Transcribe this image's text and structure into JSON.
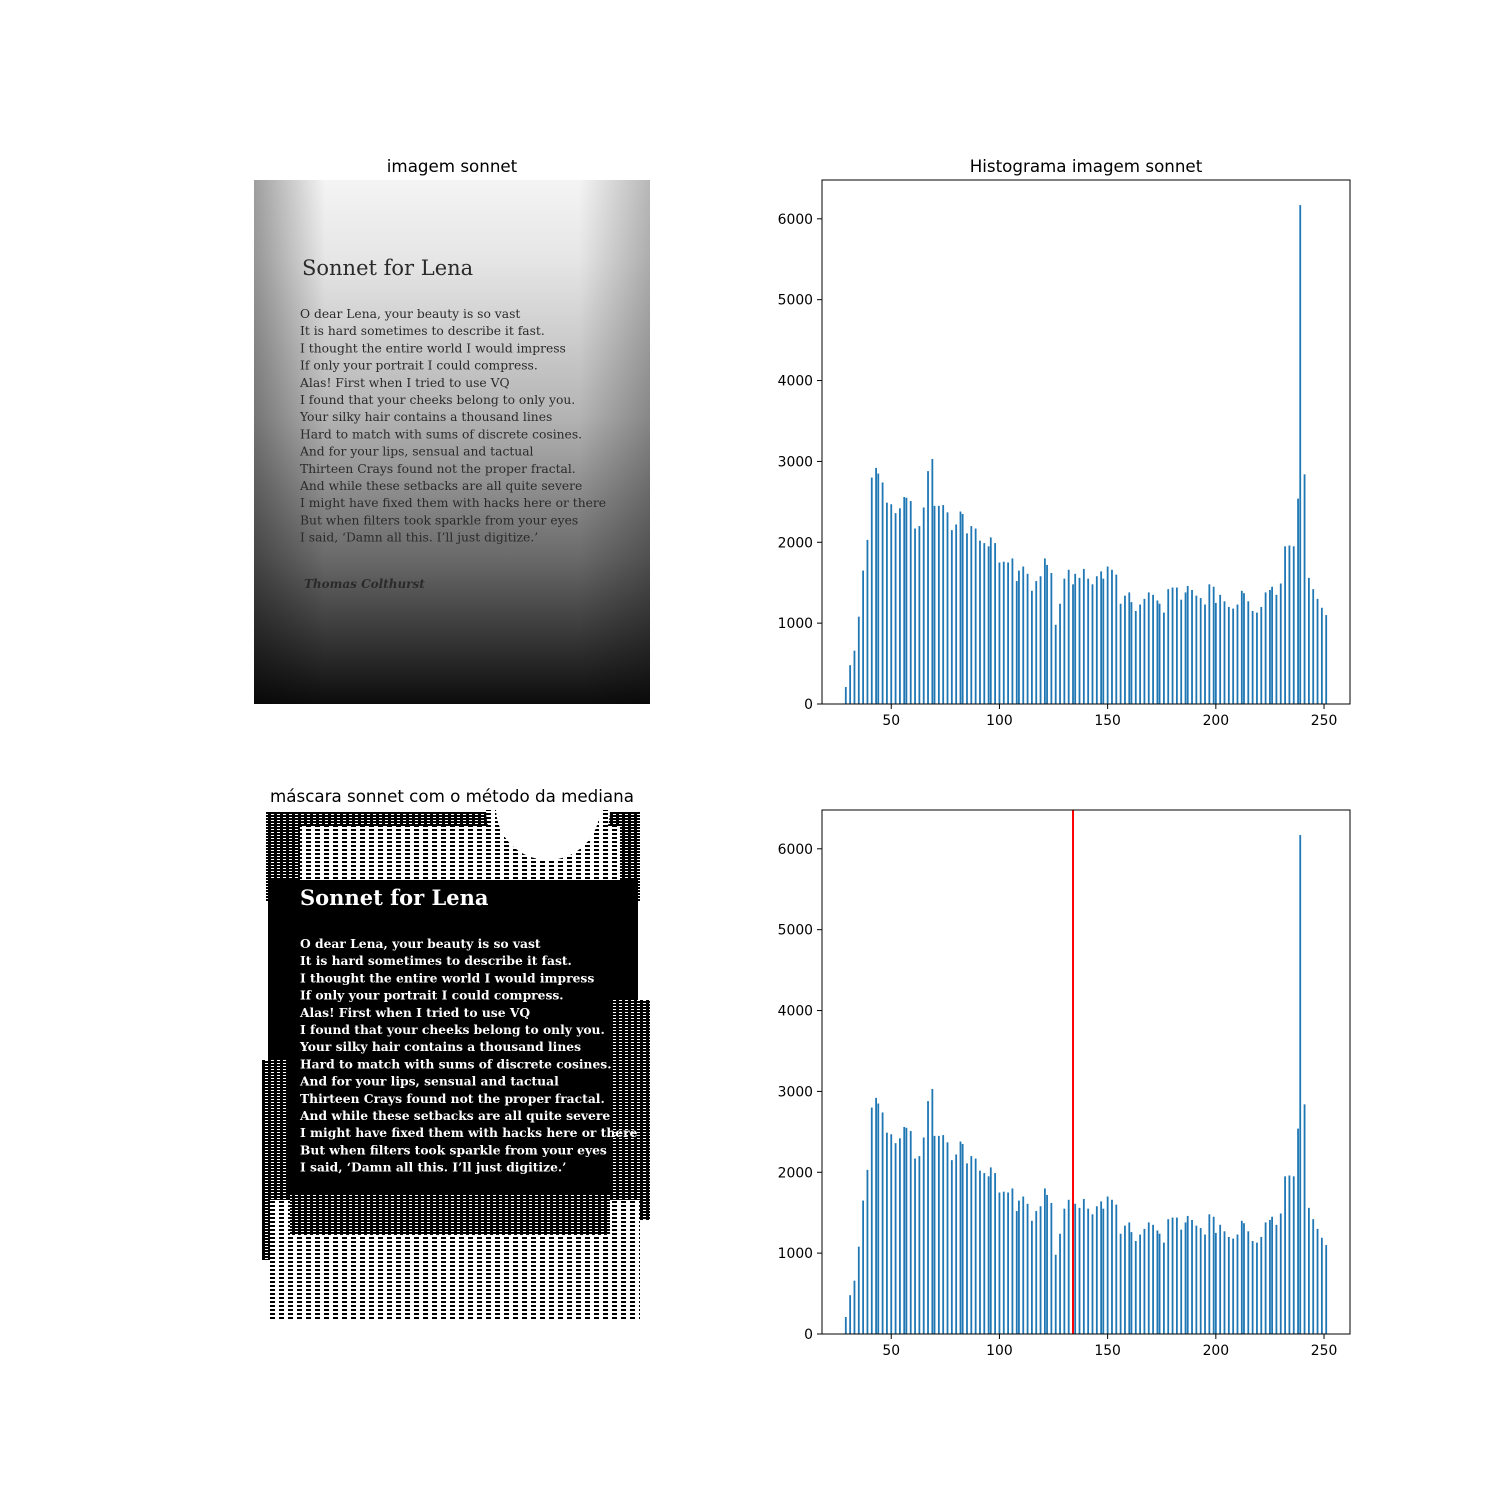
{
  "panels": {
    "image_title": "imagem sonnet",
    "mask_title": "máscara sonnet com o método da mediana",
    "hist_title": "Histograma imagem sonnet",
    "hist2_title": ""
  },
  "document": {
    "heading": "Sonnet for Lena",
    "lines": [
      "O dear Lena, your beauty is so vast",
      "It is hard sometimes to describe it fast.",
      "I thought the entire world I would impress",
      "If only your portrait I could compress.",
      "Alas! First when I tried to use VQ",
      "I found that your cheeks belong to only you.",
      "Your silky hair contains a thousand lines",
      "Hard to match with sums of discrete cosines.",
      "And for your lips, sensual and tactual",
      "Thirteen Crays found not the proper fractal.",
      "And while these setbacks are all quite severe",
      "I might have fixed them with hacks here or there",
      "But when filters took sparkle from your eyes",
      "I said, ‘Damn all this. I’ll just digitize.’"
    ],
    "signature": "Thomas Colthurst"
  },
  "chart_data": [
    {
      "type": "bar",
      "title": "Histograma imagem sonnet",
      "xlabel": "",
      "ylabel": "",
      "xlim": [
        18,
        262
      ],
      "ylim": [
        0,
        6480
      ],
      "xticks": [
        50,
        100,
        150,
        200,
        250
      ],
      "yticks": [
        0,
        1000,
        2000,
        3000,
        4000,
        5000,
        6000
      ],
      "bar_color": "#1f77b4",
      "x": [
        29,
        31,
        33,
        35,
        37,
        39,
        41,
        43,
        44,
        46,
        48,
        50,
        52,
        54,
        56,
        57,
        59,
        61,
        63,
        65,
        67,
        69,
        70,
        72,
        74,
        76,
        78,
        80,
        82,
        83,
        85,
        87,
        89,
        91,
        93,
        95,
        96,
        98,
        100,
        102,
        104,
        106,
        108,
        109,
        111,
        113,
        115,
        117,
        119,
        121,
        122,
        124,
        126,
        128,
        130,
        132,
        134,
        135,
        137,
        139,
        141,
        143,
        145,
        147,
        148,
        150,
        152,
        154,
        156,
        158,
        160,
        161,
        163,
        165,
        167,
        169,
        171,
        173,
        174,
        176,
        178,
        180,
        182,
        184,
        186,
        187,
        189,
        191,
        193,
        195,
        197,
        199,
        200,
        202,
        204,
        206,
        208,
        210,
        212,
        213,
        215,
        217,
        219,
        221,
        223,
        225,
        226,
        228,
        230,
        232,
        234,
        236,
        238,
        239,
        241,
        243,
        245,
        247,
        249,
        251
      ],
      "values": [
        210,
        480,
        660,
        1080,
        1650,
        2030,
        2800,
        2920,
        2850,
        2740,
        2490,
        2470,
        2360,
        2420,
        2560,
        2550,
        2510,
        2170,
        2200,
        2430,
        2880,
        3030,
        2450,
        2450,
        2460,
        2370,
        2150,
        2220,
        2380,
        2350,
        2110,
        2200,
        2170,
        2020,
        1990,
        1950,
        2060,
        1990,
        1750,
        1760,
        1750,
        1800,
        1520,
        1650,
        1700,
        1610,
        1400,
        1520,
        1580,
        1800,
        1720,
        1620,
        980,
        1240,
        1550,
        1660,
        1480,
        1610,
        1560,
        1670,
        1550,
        1480,
        1580,
        1640,
        1550,
        1700,
        1660,
        1600,
        1240,
        1340,
        1380,
        1260,
        1150,
        1230,
        1300,
        1380,
        1350,
        1280,
        1240,
        1130,
        1420,
        1440,
        1440,
        1290,
        1380,
        1460,
        1410,
        1340,
        1310,
        1230,
        1480,
        1450,
        1250,
        1350,
        1270,
        1200,
        1180,
        1230,
        1400,
        1370,
        1270,
        1150,
        1130,
        1200,
        1380,
        1410,
        1450,
        1350,
        1490,
        1950,
        1960,
        1950,
        2540,
        6170,
        2840,
        1560,
        1420,
        1300,
        1190,
        1100
      ]
    },
    {
      "type": "bar",
      "title": "",
      "xlabel": "",
      "ylabel": "",
      "xlim": [
        18,
        262
      ],
      "ylim": [
        0,
        6480
      ],
      "xticks": [
        50,
        100,
        150,
        200,
        250
      ],
      "yticks": [
        0,
        1000,
        2000,
        3000,
        4000,
        5000,
        6000
      ],
      "bar_color": "#1f77b4",
      "threshold": 134,
      "threshold_color": "#ff0000"
    }
  ]
}
